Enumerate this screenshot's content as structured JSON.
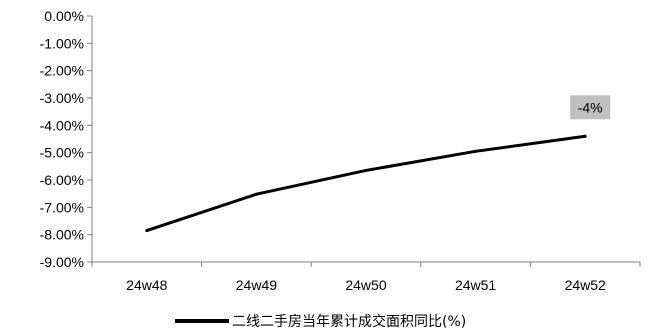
{
  "chart_data": {
    "type": "line",
    "title": "",
    "xlabel": "",
    "ylabel": "",
    "categories": [
      "24w48",
      "24w49",
      "24w50",
      "24w51",
      "24w52"
    ],
    "series": [
      {
        "name": "二线二手房当年累计成交面积同比(%)",
        "values": [
          -7.85,
          -6.52,
          -5.65,
          -4.95,
          -4.4
        ],
        "color": "#000000"
      }
    ],
    "ylim": [
      -9,
      0
    ],
    "yticks": [
      0,
      -1,
      -2,
      -3,
      -4,
      -5,
      -6,
      -7,
      -8,
      -9
    ],
    "ytick_labels": [
      "0.00%",
      "-1.00%",
      "-2.00%",
      "-3.00%",
      "-4.00%",
      "-5.00%",
      "-6.00%",
      "-7.00%",
      "-8.00%",
      "-9.00%"
    ],
    "annotations": [
      {
        "category": "24w52",
        "text": "-4%",
        "background": "#bfbfbf"
      }
    ],
    "grid": false,
    "legend_position": "bottom"
  }
}
